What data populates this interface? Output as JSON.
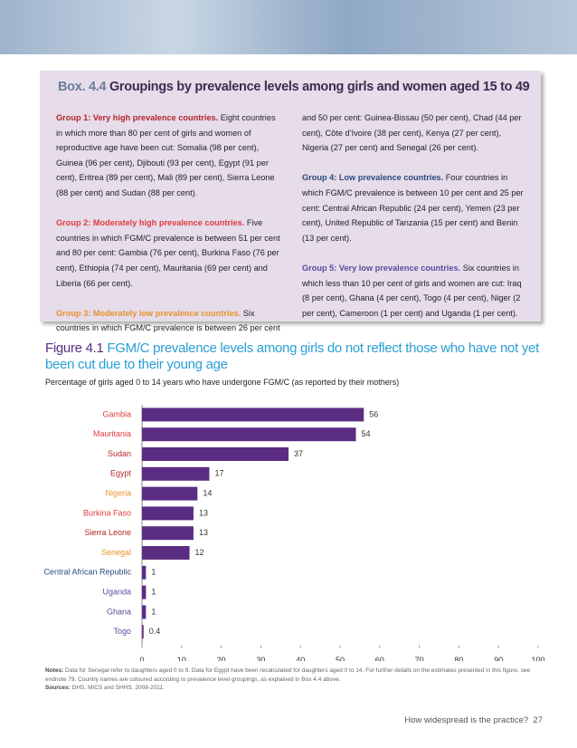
{
  "box": {
    "number": "Box. 4.4",
    "title": "Groupings by prevalence levels among girls and women aged 15 to 49",
    "groups": [
      {
        "label": "Group 1: Very high prevalence countries.",
        "text": "Eight countries in which more than 80 per cent of girls and women of reproductive age have been cut: Somalia (98 per cent), Guinea (96 per cent), Djibouti (93 per cent), Egypt (91 per cent), Eritrea (89 per cent), Mali (89 per cent), Sierra Leone (88 per cent) and Sudan (88 per cent).",
        "color": "#b2262a"
      },
      {
        "label": "Group 2: Moderately high prevalence countries.",
        "text": "Five countries in which FGM/C prevalence is between 51 per cent and 80 per cent: Gambia (76 per cent), Burkina Faso (76 per cent), Ethiopia (74 per cent), Mauritania (69 per cent) and Liberia (66 per cent).",
        "color": "#e03a3e"
      },
      {
        "label": "Group 3: Moderately low prevalence countries.",
        "text": "Six countries in which FGM/C prevalence is between 26 per cent and 50 per cent: Guinea-Bissau (50 per cent), Chad (44 per cent), Côte d’Ivoire (38 per cent), Kenya (27 per cent), Nigeria (27 per cent) and Senegal (26 per cent).",
        "color": "#e8912d"
      },
      {
        "label": "Group 4: Low prevalence countries.",
        "text": "Four countries in which FGM/C prevalence is between 10 per cent and 25 per cent: Central African Republic (24 per cent), Yemen (23 per cent), United Republic of Tanzania (15 per cent) and Benin (13 per cent).",
        "color": "#2e4a7d"
      },
      {
        "label": "Group 5: Very low prevalence countries.",
        "text": "Six countries in which less than 10 per cent of girls and women are cut: Iraq (8 per cent), Ghana (4 per cent), Togo (4 per cent), Niger (2 per cent), Cameroon (1 per cent) and Uganda (1 per cent).",
        "color": "#5d4a9c"
      }
    ]
  },
  "chart_data": {
    "type": "bar",
    "orientation": "horizontal",
    "figure_number": "Figure 4.1",
    "title": "FGM/C prevalence levels among girls do not reflect those who have not yet been cut due to their young age",
    "subtitle": "Percentage of girls aged 0 to 14 years who have undergone FGM/C (as reported by their mothers)",
    "categories": [
      "Gambia",
      "Mauritania",
      "Sudan",
      "Egypt",
      "Nigeria",
      "Burkina Faso",
      "Sierra Leone",
      "Senegal",
      "Central African Republic",
      "Uganda",
      "Ghana",
      "Togo"
    ],
    "category_colors": [
      "#e03a3e",
      "#e03a3e",
      "#b2262a",
      "#b2262a",
      "#e8912d",
      "#e03a3e",
      "#b2262a",
      "#e8912d",
      "#2e4a7d",
      "#5d4a9c",
      "#5d4a9c",
      "#5d4a9c"
    ],
    "values": [
      56,
      54,
      37,
      17,
      14,
      13,
      13,
      12,
      1,
      1,
      1,
      0.4
    ],
    "color": "#5b2d82",
    "xlim": [
      0,
      100
    ],
    "xticks": [
      0,
      10,
      20,
      30,
      40,
      50,
      60,
      70,
      80,
      90,
      100
    ]
  },
  "notes": {
    "notes_label": "Notes:",
    "notes": "Data for Senegal refer to daughters aged 0 to 9. Data for Egypt have been recalculated for daughters aged 0 to 14. For further details on the estimates presented in this figure, see endnote 79. Country names are coloured according to prevalence level groupings, as explained in Box 4.4 above.",
    "sources_label": "Sources:",
    "sources": "DHS, MICS and SHHS, 2008-2011."
  },
  "footer": {
    "text": "How widespread is the practice?",
    "page": "27"
  }
}
